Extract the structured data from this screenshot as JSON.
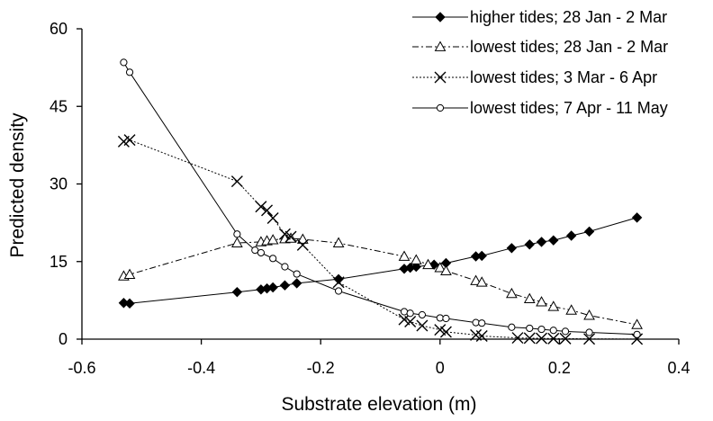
{
  "chart_data": {
    "type": "line",
    "title": "",
    "xlabel": "Substrate elevation (m)",
    "ylabel": "Predicted density",
    "xlim": [
      -0.6,
      0.4
    ],
    "ylim": [
      0,
      60
    ],
    "xticks": [
      -0.6,
      -0.4,
      -0.2,
      0,
      0.2,
      0.4
    ],
    "yticks": [
      0,
      15,
      30,
      45,
      60
    ],
    "xtick_labels": [
      "-0.6",
      "-0.4",
      "-0.2",
      "0",
      "0.2",
      "0.4"
    ],
    "ytick_labels": [
      "0",
      "15",
      "30",
      "45",
      "60"
    ],
    "grid": false,
    "legend_position": "top-right",
    "series": [
      {
        "name": "higher tides; 28 Jan - 2 Mar",
        "marker": "filled-diamond",
        "line_style": "solid",
        "points": [
          [
            -0.53,
            7.0
          ],
          [
            -0.52,
            6.9
          ],
          [
            -0.34,
            9.1
          ],
          [
            -0.3,
            9.6
          ],
          [
            -0.29,
            9.8
          ],
          [
            -0.28,
            10.0
          ],
          [
            -0.26,
            10.4
          ],
          [
            -0.24,
            10.8
          ],
          [
            -0.17,
            11.6
          ],
          [
            -0.06,
            13.6
          ],
          [
            -0.05,
            13.8
          ],
          [
            -0.04,
            14.0
          ],
          [
            -0.01,
            14.4
          ],
          [
            0.01,
            14.7
          ],
          [
            0.06,
            16.0
          ],
          [
            0.07,
            16.1
          ],
          [
            0.12,
            17.6
          ],
          [
            0.15,
            18.3
          ],
          [
            0.17,
            18.8
          ],
          [
            0.19,
            19.1
          ],
          [
            0.22,
            20.0
          ],
          [
            0.25,
            20.8
          ],
          [
            0.33,
            23.5
          ]
        ]
      },
      {
        "name": "lowest tides; 28 Jan - 2 Mar",
        "marker": "open-triangle",
        "line_style": "dash-dot",
        "points": [
          [
            -0.53,
            12.2
          ],
          [
            -0.52,
            12.5
          ],
          [
            -0.34,
            18.6
          ],
          [
            -0.3,
            18.8
          ],
          [
            -0.29,
            19.0
          ],
          [
            -0.28,
            19.2
          ],
          [
            -0.26,
            19.4
          ],
          [
            -0.25,
            19.5
          ],
          [
            -0.23,
            19.3
          ],
          [
            -0.17,
            18.6
          ],
          [
            -0.06,
            16.0
          ],
          [
            -0.04,
            15.3
          ],
          [
            -0.02,
            14.4
          ],
          [
            0.0,
            13.8
          ],
          [
            0.01,
            13.2
          ],
          [
            0.06,
            11.3
          ],
          [
            0.07,
            11.0
          ],
          [
            0.12,
            8.8
          ],
          [
            0.15,
            7.8
          ],
          [
            0.17,
            7.2
          ],
          [
            0.19,
            6.3
          ],
          [
            0.22,
            5.6
          ],
          [
            0.25,
            4.6
          ],
          [
            0.33,
            2.8
          ]
        ]
      },
      {
        "name": "lowest tides; 3 Mar - 6 Apr",
        "marker": "cross",
        "line_style": "dotted",
        "points": [
          [
            -0.53,
            38.2
          ],
          [
            -0.52,
            38.5
          ],
          [
            -0.34,
            30.5
          ],
          [
            -0.3,
            25.6
          ],
          [
            -0.29,
            24.9
          ],
          [
            -0.28,
            23.4
          ],
          [
            -0.26,
            20.3
          ],
          [
            -0.25,
            19.8
          ],
          [
            -0.23,
            18.2
          ],
          [
            -0.17,
            11.0
          ],
          [
            -0.06,
            3.8
          ],
          [
            -0.05,
            3.4
          ],
          [
            -0.03,
            2.6
          ],
          [
            0.0,
            1.8
          ],
          [
            0.01,
            1.4
          ],
          [
            0.06,
            0.8
          ],
          [
            0.07,
            0.6
          ],
          [
            0.13,
            0.25
          ],
          [
            0.15,
            0.2
          ],
          [
            0.17,
            0.15
          ],
          [
            0.19,
            0.1
          ],
          [
            0.21,
            0.1
          ],
          [
            0.25,
            0.05
          ],
          [
            0.33,
            0.02
          ]
        ]
      },
      {
        "name": "lowest tides; 7 Apr - 11 May",
        "marker": "open-circle",
        "line_style": "solid",
        "points": [
          [
            -0.53,
            53.5
          ],
          [
            -0.52,
            51.6
          ],
          [
            -0.34,
            20.3
          ],
          [
            -0.31,
            17.2
          ],
          [
            -0.3,
            16.7
          ],
          [
            -0.28,
            15.6
          ],
          [
            -0.26,
            14.0
          ],
          [
            -0.24,
            12.6
          ],
          [
            -0.17,
            9.3
          ],
          [
            -0.06,
            5.3
          ],
          [
            -0.05,
            5.0
          ],
          [
            -0.03,
            4.7
          ],
          [
            0.0,
            4.1
          ],
          [
            0.01,
            4.0
          ],
          [
            0.06,
            3.2
          ],
          [
            0.07,
            3.1
          ],
          [
            0.12,
            2.3
          ],
          [
            0.15,
            2.1
          ],
          [
            0.17,
            1.9
          ],
          [
            0.19,
            1.7
          ],
          [
            0.21,
            1.5
          ],
          [
            0.25,
            1.3
          ],
          [
            0.33,
            0.9
          ]
        ]
      }
    ]
  }
}
